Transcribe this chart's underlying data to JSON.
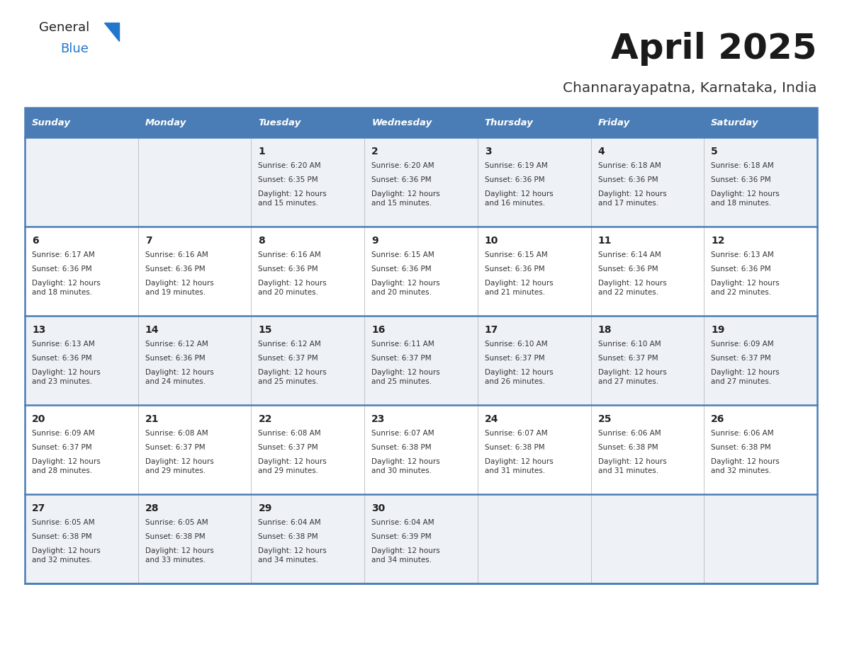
{
  "title": "April 2025",
  "subtitle": "Channarayapatna, Karnataka, India",
  "header_bg_color": "#4a7db5",
  "header_text_color": "#ffffff",
  "row_bg_alt": "#eef2f7",
  "row_bg_norm": "#ffffff",
  "border_color": "#4a7db5",
  "cell_border_color": "#aaaaaa",
  "text_color": "#333333",
  "day_num_color": "#222222",
  "title_color": "#1a1a1a",
  "subtitle_color": "#333333",
  "logo_black": "#222222",
  "logo_blue": "#2277cc",
  "triangle_color": "#2277cc",
  "day_headers": [
    "Sunday",
    "Monday",
    "Tuesday",
    "Wednesday",
    "Thursday",
    "Friday",
    "Saturday"
  ],
  "calendar_data": [
    [
      {
        "day": "",
        "sunrise": "",
        "sunset": "",
        "daylight": ""
      },
      {
        "day": "",
        "sunrise": "",
        "sunset": "",
        "daylight": ""
      },
      {
        "day": "1",
        "sunrise": "6:20 AM",
        "sunset": "6:35 PM",
        "daylight": "12 hours\nand 15 minutes."
      },
      {
        "day": "2",
        "sunrise": "6:20 AM",
        "sunset": "6:36 PM",
        "daylight": "12 hours\nand 15 minutes."
      },
      {
        "day": "3",
        "sunrise": "6:19 AM",
        "sunset": "6:36 PM",
        "daylight": "12 hours\nand 16 minutes."
      },
      {
        "day": "4",
        "sunrise": "6:18 AM",
        "sunset": "6:36 PM",
        "daylight": "12 hours\nand 17 minutes."
      },
      {
        "day": "5",
        "sunrise": "6:18 AM",
        "sunset": "6:36 PM",
        "daylight": "12 hours\nand 18 minutes."
      }
    ],
    [
      {
        "day": "6",
        "sunrise": "6:17 AM",
        "sunset": "6:36 PM",
        "daylight": "12 hours\nand 18 minutes."
      },
      {
        "day": "7",
        "sunrise": "6:16 AM",
        "sunset": "6:36 PM",
        "daylight": "12 hours\nand 19 minutes."
      },
      {
        "day": "8",
        "sunrise": "6:16 AM",
        "sunset": "6:36 PM",
        "daylight": "12 hours\nand 20 minutes."
      },
      {
        "day": "9",
        "sunrise": "6:15 AM",
        "sunset": "6:36 PM",
        "daylight": "12 hours\nand 20 minutes."
      },
      {
        "day": "10",
        "sunrise": "6:15 AM",
        "sunset": "6:36 PM",
        "daylight": "12 hours\nand 21 minutes."
      },
      {
        "day": "11",
        "sunrise": "6:14 AM",
        "sunset": "6:36 PM",
        "daylight": "12 hours\nand 22 minutes."
      },
      {
        "day": "12",
        "sunrise": "6:13 AM",
        "sunset": "6:36 PM",
        "daylight": "12 hours\nand 22 minutes."
      }
    ],
    [
      {
        "day": "13",
        "sunrise": "6:13 AM",
        "sunset": "6:36 PM",
        "daylight": "12 hours\nand 23 minutes."
      },
      {
        "day": "14",
        "sunrise": "6:12 AM",
        "sunset": "6:36 PM",
        "daylight": "12 hours\nand 24 minutes."
      },
      {
        "day": "15",
        "sunrise": "6:12 AM",
        "sunset": "6:37 PM",
        "daylight": "12 hours\nand 25 minutes."
      },
      {
        "day": "16",
        "sunrise": "6:11 AM",
        "sunset": "6:37 PM",
        "daylight": "12 hours\nand 25 minutes."
      },
      {
        "day": "17",
        "sunrise": "6:10 AM",
        "sunset": "6:37 PM",
        "daylight": "12 hours\nand 26 minutes."
      },
      {
        "day": "18",
        "sunrise": "6:10 AM",
        "sunset": "6:37 PM",
        "daylight": "12 hours\nand 27 minutes."
      },
      {
        "day": "19",
        "sunrise": "6:09 AM",
        "sunset": "6:37 PM",
        "daylight": "12 hours\nand 27 minutes."
      }
    ],
    [
      {
        "day": "20",
        "sunrise": "6:09 AM",
        "sunset": "6:37 PM",
        "daylight": "12 hours\nand 28 minutes."
      },
      {
        "day": "21",
        "sunrise": "6:08 AM",
        "sunset": "6:37 PM",
        "daylight": "12 hours\nand 29 minutes."
      },
      {
        "day": "22",
        "sunrise": "6:08 AM",
        "sunset": "6:37 PM",
        "daylight": "12 hours\nand 29 minutes."
      },
      {
        "day": "23",
        "sunrise": "6:07 AM",
        "sunset": "6:38 PM",
        "daylight": "12 hours\nand 30 minutes."
      },
      {
        "day": "24",
        "sunrise": "6:07 AM",
        "sunset": "6:38 PM",
        "daylight": "12 hours\nand 31 minutes."
      },
      {
        "day": "25",
        "sunrise": "6:06 AM",
        "sunset": "6:38 PM",
        "daylight": "12 hours\nand 31 minutes."
      },
      {
        "day": "26",
        "sunrise": "6:06 AM",
        "sunset": "6:38 PM",
        "daylight": "12 hours\nand 32 minutes."
      }
    ],
    [
      {
        "day": "27",
        "sunrise": "6:05 AM",
        "sunset": "6:38 PM",
        "daylight": "12 hours\nand 32 minutes."
      },
      {
        "day": "28",
        "sunrise": "6:05 AM",
        "sunset": "6:38 PM",
        "daylight": "12 hours\nand 33 minutes."
      },
      {
        "day": "29",
        "sunrise": "6:04 AM",
        "sunset": "6:38 PM",
        "daylight": "12 hours\nand 34 minutes."
      },
      {
        "day": "30",
        "sunrise": "6:04 AM",
        "sunset": "6:39 PM",
        "daylight": "12 hours\nand 34 minutes."
      },
      {
        "day": "",
        "sunrise": "",
        "sunset": "",
        "daylight": ""
      },
      {
        "day": "",
        "sunrise": "",
        "sunset": "",
        "daylight": ""
      },
      {
        "day": "",
        "sunrise": "",
        "sunset": "",
        "daylight": ""
      }
    ]
  ],
  "figsize": [
    11.88,
    9.18
  ],
  "dpi": 100
}
